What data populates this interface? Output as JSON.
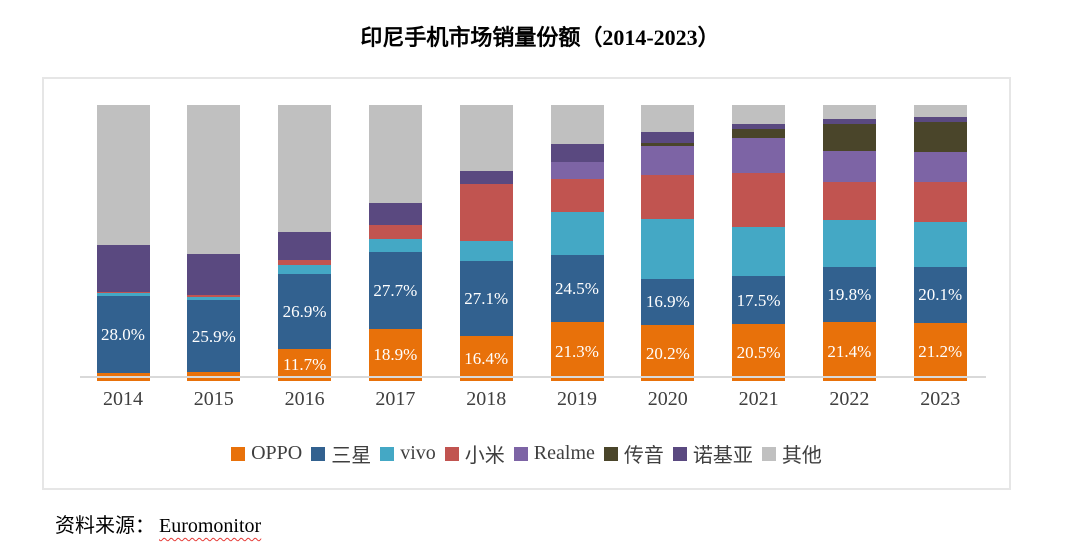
{
  "title": "印尼手机市场销量份额（2014-2023）",
  "source": {
    "prefix": "资料来源：",
    "text": "Euromonitor"
  },
  "chart_data": {
    "type": "bar",
    "stacked": true,
    "unit": "%",
    "title": "印尼手机市场销量份额（2014-2023）",
    "categories": [
      "2014",
      "2015",
      "2016",
      "2017",
      "2018",
      "2019",
      "2020",
      "2021",
      "2022",
      "2023"
    ],
    "ylim": [
      0,
      100
    ],
    "grid": false,
    "legend_position": "bottom",
    "axis_color": "#d9d9d9",
    "series": [
      {
        "name": "OPPO",
        "color": "#e8710a",
        "values": [
          2.8,
          3.3,
          11.7,
          18.9,
          16.4,
          21.3,
          20.2,
          20.5,
          21.4,
          21.2
        ],
        "data_labels": [
          null,
          null,
          "11.7%",
          "18.9%",
          "16.4%",
          "21.3%",
          "20.2%",
          "20.5%",
          "21.4%",
          "21.2%"
        ]
      },
      {
        "name": "三星",
        "color": "#32618f",
        "values": [
          28.0,
          25.9,
          26.9,
          27.7,
          27.1,
          24.5,
          16.9,
          17.5,
          19.8,
          20.1
        ],
        "data_labels": [
          "28.0%",
          "25.9%",
          "26.9%",
          "27.7%",
          "27.1%",
          "24.5%",
          "16.9%",
          "17.5%",
          "19.8%",
          "20.1%"
        ]
      },
      {
        "name": "vivo",
        "color": "#44a8c5",
        "values": [
          1.0,
          1.2,
          3.3,
          4.8,
          7.4,
          15.5,
          21.5,
          17.8,
          17.0,
          16.4
        ],
        "data_labels": null
      },
      {
        "name": "小米",
        "color": "#c15450",
        "values": [
          0.5,
          0.7,
          1.8,
          5.2,
          20.5,
          11.8,
          16.0,
          19.4,
          14.0,
          14.4
        ],
        "data_labels": null
      },
      {
        "name": "Realme",
        "color": "#7d64a5",
        "values": [
          0,
          0,
          0,
          0,
          0,
          6.3,
          10.4,
          12.9,
          11.1,
          10.8
        ],
        "data_labels": null
      },
      {
        "name": "传音",
        "color": "#4a452a",
        "values": [
          0,
          0,
          0,
          0,
          0,
          0,
          1.3,
          3.1,
          9.7,
          11.1
        ],
        "data_labels": null
      },
      {
        "name": "诺基亚",
        "color": "#5a4980",
        "values": [
          17.0,
          15.0,
          10.3,
          7.8,
          4.8,
          6.3,
          4.0,
          2.1,
          2.0,
          1.6
        ],
        "data_labels": null
      },
      {
        "name": "其他",
        "color": "#c0c0c0",
        "values": [
          50.7,
          53.9,
          46.0,
          35.6,
          23.8,
          14.3,
          9.7,
          6.7,
          5.0,
          4.4
        ],
        "data_labels": null
      }
    ]
  }
}
